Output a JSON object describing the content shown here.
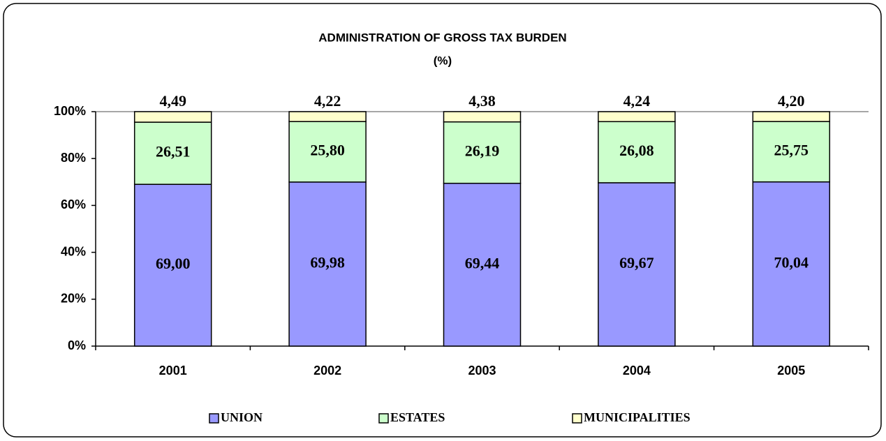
{
  "chart_data": {
    "type": "stacked_bar",
    "title": "ADMINISTRATION OF GROSS TAX BURDEN",
    "subtitle": "(%)",
    "categories": [
      "2001",
      "2002",
      "2003",
      "2004",
      "2005"
    ],
    "series": [
      {
        "name": "UNION",
        "color": "#9999ff",
        "values": [
          69.0,
          69.98,
          69.44,
          69.67,
          70.04
        ],
        "value_labels": [
          "69,00",
          "69,98",
          "69,44",
          "69,67",
          "70,04"
        ]
      },
      {
        "name": "ESTATES",
        "color": "#ccffcc",
        "values": [
          26.51,
          25.8,
          26.19,
          26.08,
          25.75
        ],
        "value_labels": [
          "26,51",
          "25,80",
          "26,19",
          "26,08",
          "25,75"
        ]
      },
      {
        "name": "MUNICIPALITIES",
        "color": "#ffffcc",
        "values": [
          4.49,
          4.22,
          4.38,
          4.24,
          4.2
        ],
        "value_labels": [
          "4,49",
          "4,22",
          "4,38",
          "4,24",
          "4,20"
        ]
      }
    ],
    "ylim": [
      0,
      100
    ],
    "yticks": [
      {
        "value": 0,
        "label": "0%"
      },
      {
        "value": 20,
        "label": "20%"
      },
      {
        "value": 40,
        "label": "40%"
      },
      {
        "value": 60,
        "label": "60%"
      },
      {
        "value": 80,
        "label": "80%"
      },
      {
        "value": 100,
        "label": "100%"
      }
    ],
    "legend": "bottom"
  }
}
